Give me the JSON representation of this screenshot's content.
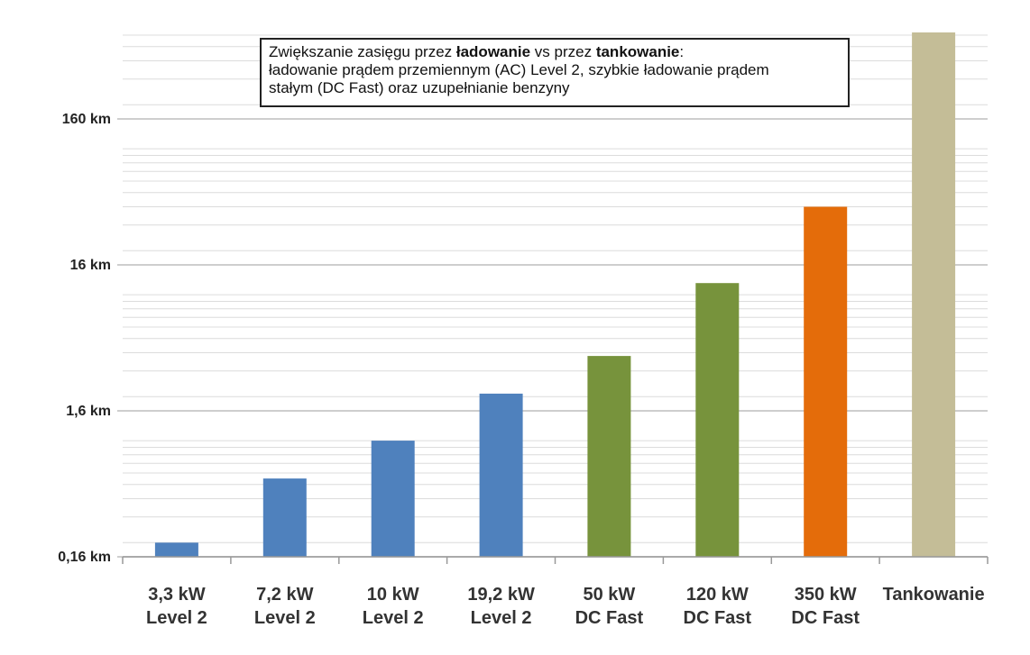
{
  "chart_data": {
    "type": "bar",
    "title": {
      "line1_part1": "Zwiększanie zasięgu przez ",
      "line1_bold1": "ładowanie",
      "line1_part2": " vs przez ",
      "line1_bold2": "tankowanie",
      "line1_part3": ":",
      "line2": "ładowanie prądem przemiennym (AC) Level 2, szybkie ładowanie prądem",
      "line3": "stałym (DC Fast) oraz uzupełnianie benzyny"
    },
    "yscale": "log",
    "ylim": [
      0.16,
      1000
    ],
    "yticks": [
      {
        "value": 0.16,
        "label": "0,16 km"
      },
      {
        "value": 1.6,
        "label": "1,6 km"
      },
      {
        "value": 16,
        "label": "16 km"
      },
      {
        "value": 160,
        "label": "160 km"
      }
    ],
    "grid": true,
    "categories": [
      {
        "line1": "3,3 kW",
        "line2": "Level 2"
      },
      {
        "line1": "7,2 kW",
        "line2": "Level 2"
      },
      {
        "line1": "10 kW",
        "line2": "Level 2"
      },
      {
        "line1": "19,2 kW",
        "line2": "Level 2"
      },
      {
        "line1": "50 kW",
        "line2": "DC Fast"
      },
      {
        "line1": "120 kW",
        "line2": "DC Fast"
      },
      {
        "line1": "350 kW",
        "line2": "DC Fast"
      },
      {
        "line1": "Tankowanie",
        "line2": ""
      }
    ],
    "values": [
      0.2,
      0.55,
      1.0,
      2.1,
      3.8,
      12,
      40,
      780
    ],
    "colors": [
      "#4f81bd",
      "#4f81bd",
      "#4f81bd",
      "#4f81bd",
      "#77933c",
      "#77933c",
      "#e46c0a",
      "#c4bd97"
    ]
  }
}
